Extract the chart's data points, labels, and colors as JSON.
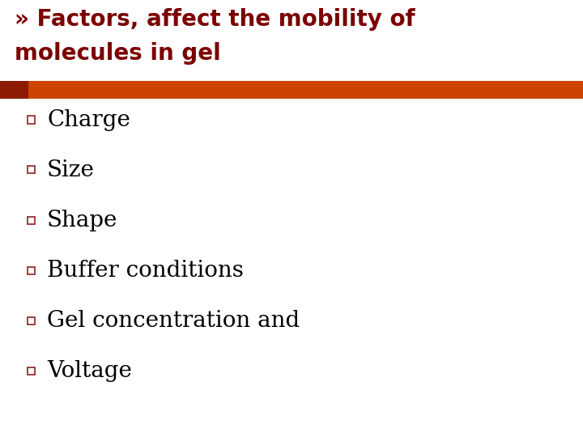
{
  "title_line1": "» Factors, affect the mobility of",
  "title_line2": "molecules in gel",
  "title_color": "#7B0000",
  "title_fontsize": 20,
  "bar_color_left": "#8B1A00",
  "bar_color_right": "#CC4400",
  "bullet_items": [
    "Charge",
    "Size",
    "Shape",
    "Buffer conditions",
    "Gel concentration and",
    "Voltage"
  ],
  "bullet_color": "#000000",
  "bullet_fontsize": 20,
  "bullet_marker_color": "#8B2020",
  "background_color": "#FFFFFF",
  "fig_width": 7.2,
  "fig_height": 5.4,
  "fig_dpi": 100
}
